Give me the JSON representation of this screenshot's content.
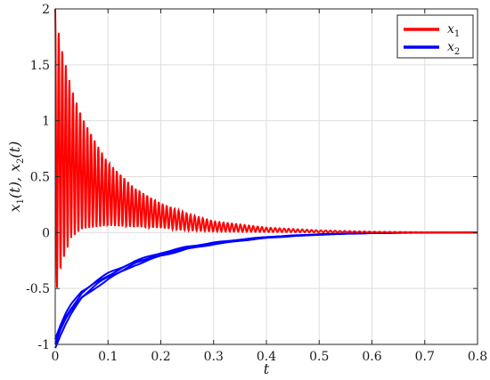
{
  "chart_data": {
    "type": "line",
    "xlabel": "t",
    "ylabel": "x1(t), x2(t)",
    "ylabel_parts": {
      "a_main": "x",
      "a_sub": "1",
      "a_arg": "(t),",
      "b_main": "x",
      "b_sub": "2",
      "b_arg": "(t)"
    },
    "xlim": [
      0,
      0.8
    ],
    "ylim": [
      -1,
      2
    ],
    "xticks": [
      0,
      0.1,
      0.2,
      0.3,
      0.4,
      0.5,
      0.6,
      0.7,
      0.8
    ],
    "xtick_labels": [
      "0",
      "0.1",
      "0.2",
      "0.3",
      "0.4",
      "0.5",
      "0.6",
      "0.7",
      "0.8"
    ],
    "yticks": [
      -1,
      -0.5,
      0,
      0.5,
      1,
      1.5,
      2
    ],
    "ytick_labels": [
      "-1",
      "-0.5",
      "0",
      "0.5",
      "1",
      "1.5",
      "2"
    ],
    "grid": true,
    "legend_position": "top-right",
    "series": [
      {
        "name": "x1",
        "legend_main": "x",
        "legend_sub": "1",
        "color": "#ff0000",
        "x": [
          0,
          0.005,
          0.01,
          0.015,
          0.02,
          0.03,
          0.05,
          0.08,
          0.1,
          0.15,
          0.2,
          0.25,
          0.3,
          0.4,
          0.5,
          0.6,
          0.7,
          0.8
        ],
        "envelope_upper": [
          2.0,
          1.85,
          1.72,
          1.6,
          1.5,
          1.3,
          1.05,
          0.78,
          0.63,
          0.4,
          0.26,
          0.17,
          0.1,
          0.045,
          0.02,
          0.008,
          0.003,
          0.0
        ],
        "envelope_lower": [
          -0.6,
          -0.45,
          -0.35,
          -0.25,
          -0.18,
          -0.05,
          0.02,
          0.05,
          0.06,
          0.05,
          0.04,
          0.02,
          0.01,
          0.005,
          0.002,
          0.0,
          0.0,
          0.0
        ]
      },
      {
        "name": "x2",
        "legend_main": "x",
        "legend_sub": "2",
        "color": "#0000ff",
        "x": [
          0,
          0.01,
          0.02,
          0.03,
          0.05,
          0.08,
          0.1,
          0.15,
          0.2,
          0.25,
          0.3,
          0.35,
          0.4,
          0.45,
          0.5,
          0.55,
          0.6,
          0.65,
          0.7,
          0.8
        ],
        "y": [
          -1.0,
          -0.88,
          -0.78,
          -0.7,
          -0.57,
          -0.46,
          -0.4,
          -0.28,
          -0.2,
          -0.14,
          -0.1,
          -0.07,
          -0.045,
          -0.03,
          -0.018,
          -0.01,
          -0.005,
          -0.002,
          -0.001,
          0.0
        ]
      }
    ]
  }
}
